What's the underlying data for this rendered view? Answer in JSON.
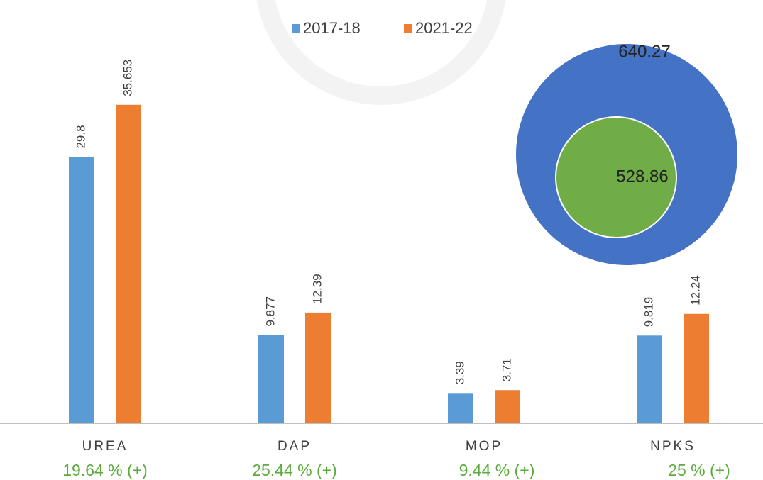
{
  "chart_data": {
    "type": "bar",
    "categories": [
      "UREA",
      "DAP",
      "MOP",
      "NPKS"
    ],
    "series": [
      {
        "name": "2017-18",
        "color": "#5b9bd5",
        "values": [
          29.8,
          9.877,
          3.39,
          9.819
        ]
      },
      {
        "name": "2021-22",
        "color": "#ed7d31",
        "values": [
          35.653,
          12.39,
          3.71,
          12.24
        ]
      }
    ],
    "annotations": [
      "19.64 % (+)",
      "25.44 % (+)",
      "9.44 % (+)",
      "25 % (+)"
    ],
    "circle_labels": [
      {
        "text": "640.27",
        "color": "#4472c4"
      },
      {
        "text": "528.86",
        "color": "#70ad47"
      }
    ]
  }
}
